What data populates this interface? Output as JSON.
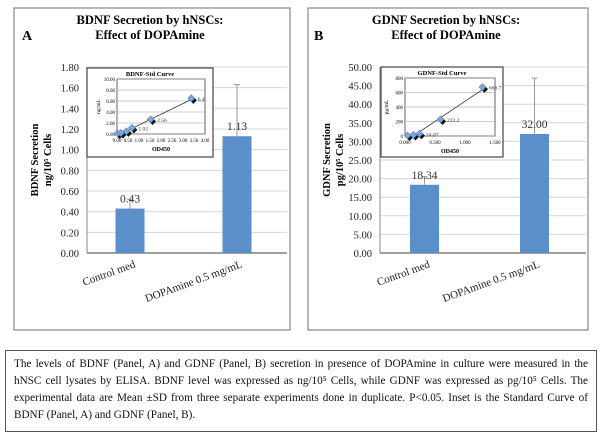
{
  "chart_data": [
    {
      "type": "bar",
      "panel_label": "A",
      "title": [
        "BDNF Secretion by hNSCs:",
        "Effect of DOPAmine"
      ],
      "ylabel": [
        "BDNF Secretion",
        "ng/10⁵ Cells"
      ],
      "categories": [
        "Control med",
        "DOPAmine 0.5 mg/mL"
      ],
      "values": [
        0.43,
        1.13
      ],
      "data_labels": [
        "0.43",
        "1.13"
      ],
      "error_upper": [
        0.09,
        0.5
      ],
      "ylim": [
        0,
        1.8
      ],
      "yticks": [
        "0.00",
        "0.20",
        "0.40",
        "0.60",
        "0.80",
        "1.00",
        "1.20",
        "1.40",
        "1.60",
        "1.80"
      ],
      "grid": true,
      "bar_color": "#5b8fc9",
      "inset": {
        "type": "scatter",
        "title": "BDNF-Std Curve",
        "xlabel": "OD450",
        "ylabel": "ng/mL",
        "x": [
          0.05,
          0.2,
          0.45,
          0.7,
          1.55,
          3.4
        ],
        "y": [
          0,
          0.1,
          0.4,
          1.02,
          2.56,
          6.4
        ],
        "point_labels": [
          "",
          "",
          "",
          "1.02",
          "2.56",
          "6.4"
        ],
        "xlim": [
          0,
          4
        ],
        "ylim": [
          0,
          10
        ],
        "xticks": [
          "0.00",
          "0.50",
          "1.00",
          "1.50",
          "2.00",
          "2.50",
          "3.00",
          "3.50",
          "4.00"
        ],
        "yticks": [
          "0.00",
          "2.00",
          "4.00",
          "6.00",
          "8.00",
          "10.00"
        ],
        "trendline": "linear"
      }
    },
    {
      "type": "bar",
      "panel_label": "B",
      "title": [
        "GDNF Secretion by hNSCs:",
        "Effect of DOPAmine"
      ],
      "ylabel": [
        "GDNF Secretion",
        "pg/10⁵ Cells"
      ],
      "categories": [
        "Control med",
        "DOPAmine 0.5 mg/mL"
      ],
      "values": [
        18.34,
        32.0
      ],
      "data_labels": [
        "18.34",
        "32.00"
      ],
      "error_upper": [
        2.2,
        15.0
      ],
      "ylim": [
        0,
        50
      ],
      "yticks": [
        "0.00",
        "5.00",
        "10.00",
        "15.00",
        "20.00",
        "25.00",
        "30.00",
        "35.00",
        "40.00",
        "45.00",
        "50.00"
      ],
      "grid": true,
      "bar_color": "#5b8fc9",
      "inset": {
        "type": "scatter",
        "title": "GDNF-Std Curve",
        "xlabel": "OD450",
        "ylabel": "pg/mL",
        "x": [
          0.05,
          0.15,
          0.25,
          0.6,
          1.3
        ],
        "y": [
          0,
          8.2,
          24.07,
          222.2,
          666.7
        ],
        "point_labels": [
          "",
          "",
          "24.07",
          "222.2",
          "666.7"
        ],
        "xlim": [
          0,
          1.5
        ],
        "ylim": [
          0,
          800
        ],
        "xticks": [
          "0.000",
          "0.500",
          "1.000",
          "1.500"
        ],
        "yticks": [
          "0",
          "200",
          "400",
          "600",
          "800"
        ],
        "trendline": "linear"
      }
    }
  ],
  "caption": "The levels of BDNF (Panel, A) and  GDNF (Panel, B) secretion in presence of DOPAmine in culture were measured in the hNSC cell lysates by ELISA. BDNF level was expressed as ng/10⁵ Cells, while GDNF was expressed as pg/10⁵ Cells. The experimental data are Mean ±SD from three separate experiments done in duplicate. P<0.05. Inset is the Standard Curve of BDNF (Panel, A) and GDNF (Panel, B)."
}
